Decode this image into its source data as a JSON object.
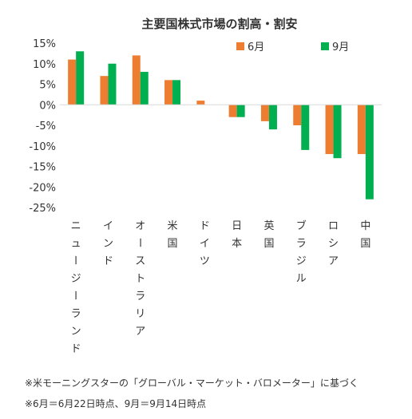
{
  "chart_data": {
    "type": "bar",
    "title": "主要国株式市場の割高・割安",
    "categories": [
      "ニュージーランド",
      "インド",
      "オーストラリア",
      "米国",
      "ドイツ",
      "日本",
      "英国",
      "ブラジル",
      "ロシア",
      "中国"
    ],
    "series": [
      {
        "name": "6月",
        "color": "#ED7D31",
        "values": [
          11,
          7,
          12,
          6,
          1,
          -3,
          -4,
          -5,
          -12,
          -12
        ]
      },
      {
        "name": "9月",
        "color": "#00B050",
        "values": [
          13,
          10,
          8,
          6,
          0,
          -3,
          -6,
          -11,
          -13,
          -23
        ]
      }
    ],
    "y_ticks": [
      "15%",
      "10%",
      "5%",
      "0%",
      "-5%",
      "-10%",
      "-15%",
      "-20%",
      "-25%"
    ],
    "ylim": [
      -25,
      15
    ],
    "grid": false,
    "legend_position": "top-right"
  },
  "notes": [
    "※米モーニングスターの「グローバル・マーケット・バロメーター」に基づく",
    "※6月＝6月22日時点、9月＝9月14日時点"
  ]
}
